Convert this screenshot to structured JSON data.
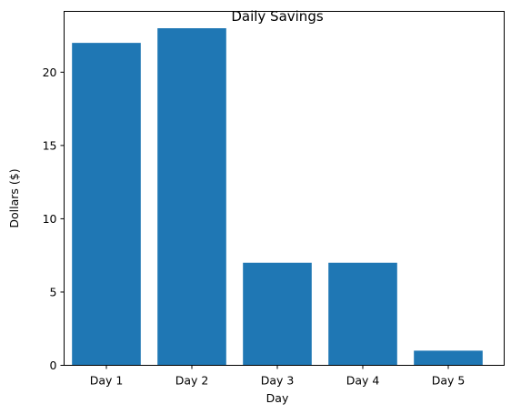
{
  "chart_data": {
    "type": "bar",
    "title": "Daily Savings",
    "xlabel": "Day",
    "ylabel": "Dollars ($)",
    "categories": [
      "Day 1",
      "Day 2",
      "Day 3",
      "Day 4",
      "Day 5"
    ],
    "values": [
      22,
      23,
      7,
      7,
      1
    ],
    "ylim": [
      0,
      24.15
    ],
    "yticks": [
      0,
      5,
      10,
      15,
      20
    ],
    "ytick_labels": [
      "0",
      "5",
      "10",
      "15",
      "20"
    ],
    "bar_color": "#1f77b4",
    "grid": false,
    "legend": false
  }
}
